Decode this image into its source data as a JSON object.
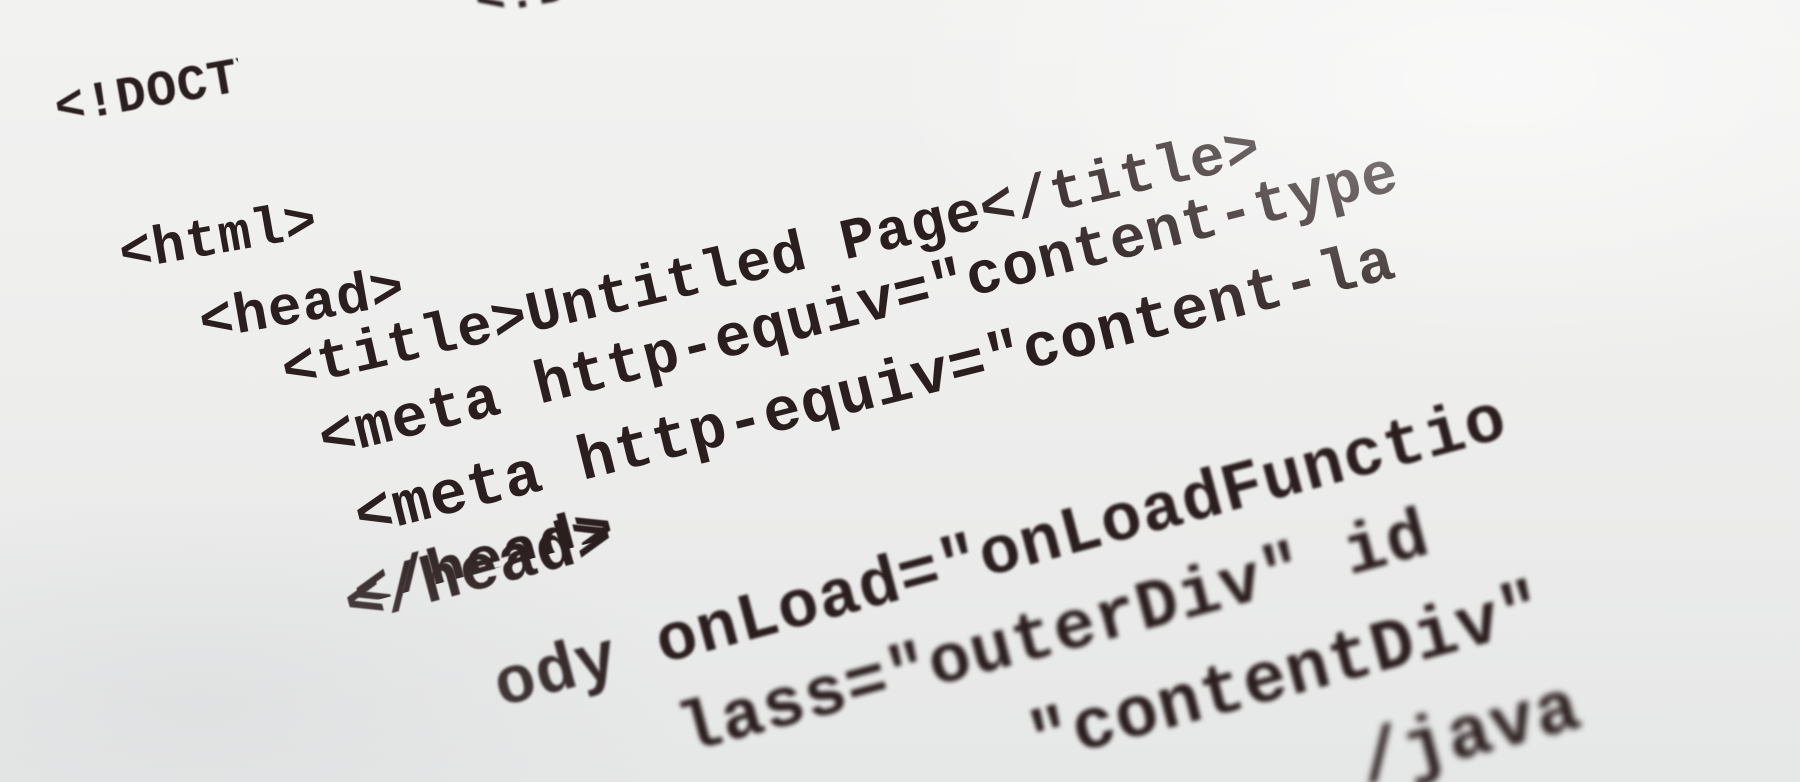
{
  "document": {
    "lines": [
      "<!DOCTYPE HTML P",
      "<html>",
      "<head>",
      "<title>Untitled Page</title>",
      "<meta http-equiv=\"content-type",
      "<meta http-equiv=\"content-la",
      "</head>",
      "</head>",
      "ody onLoad=\"onLoadFunctio",
      "lass=\"outerDiv\" id",
      "\"contentDiv\"",
      "/java"
    ]
  }
}
